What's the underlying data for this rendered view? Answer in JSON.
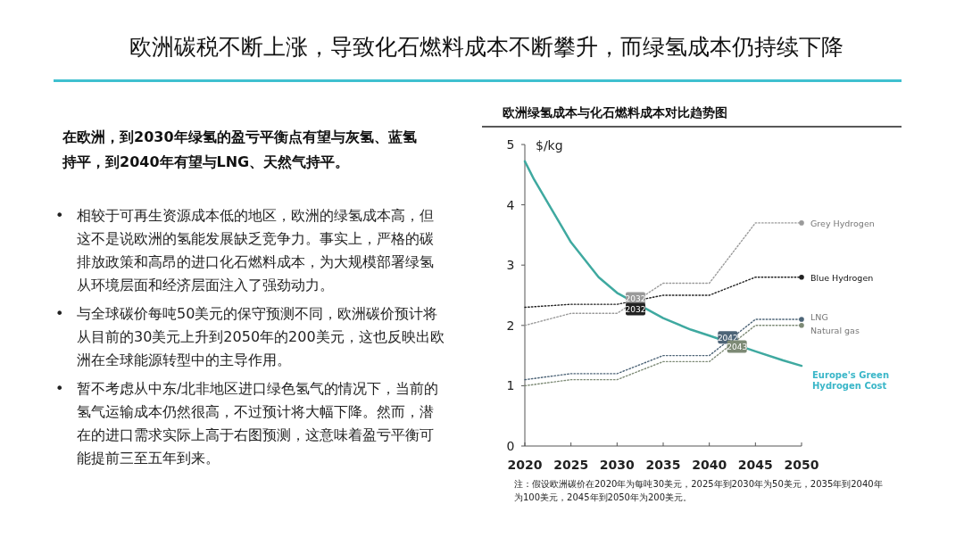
{
  "chart_data": {
    "type": "line",
    "title": "欧洲碳税不断上涨，导致化石燃料成本不断攀升，而绿氢成本仍持续下降",
    "subtitle": "欧洲绿氢成本与化石燃料成本对比趋势图",
    "ylabel": "$/kg",
    "xlim": [
      2020,
      2050
    ],
    "xticks": [
      2020,
      2025,
      2030,
      2035,
      2040,
      2045,
      2050
    ],
    "ylim": [
      0,
      5
    ],
    "yticks": [
      0,
      1,
      2,
      3,
      4,
      5
    ],
    "grid": false,
    "series": [
      {
        "name": "Grey Hydrogen",
        "color": "#9a9a9a",
        "line_style": "dotted",
        "x": [
          2020,
          2025,
          2030,
          2035,
          2040,
          2045,
          2050
        ],
        "values": [
          2.0,
          2.2,
          2.2,
          2.7,
          2.7,
          3.7,
          3.7
        ]
      },
      {
        "name": "Blue Hydrogen",
        "color": "#222222",
        "line_style": "dotted",
        "x": [
          2020,
          2025,
          2030,
          2035,
          2040,
          2045,
          2050
        ],
        "values": [
          2.3,
          2.35,
          2.35,
          2.5,
          2.5,
          2.8,
          2.8
        ]
      },
      {
        "name": "LNG",
        "color": "#4d6477",
        "line_style": "dotted",
        "x": [
          2020,
          2025,
          2030,
          2035,
          2040,
          2045,
          2050
        ],
        "values": [
          1.1,
          1.2,
          1.2,
          1.5,
          1.5,
          2.1,
          2.1
        ]
      },
      {
        "name": "Natural gas",
        "color": "#7d8a75",
        "line_style": "dotted",
        "x": [
          2020,
          2025,
          2030,
          2035,
          2040,
          2045,
          2050
        ],
        "values": [
          1.0,
          1.1,
          1.1,
          1.4,
          1.4,
          2.0,
          2.0
        ]
      },
      {
        "name": "Europe's Green Hydrogen Cost",
        "color": "#3fa9a0",
        "line_style": "solid",
        "x": [
          2020,
          2021,
          2023,
          2025,
          2028,
          2030,
          2035,
          2038,
          2040,
          2045,
          2048,
          2050
        ],
        "values": [
          4.72,
          4.42,
          3.9,
          3.38,
          2.8,
          2.54,
          2.12,
          1.93,
          1.83,
          1.57,
          1.42,
          1.33
        ]
      }
    ],
    "annotations": [
      "在欧洲，到2030年绿氢的盈亏平衡点有望与灰氢、蓝氢持平，到2040年有望与LNG、天然气持平。",
      "• 相较于可再生资源成本低的地区，欧洲的绿氢成本高，但这不是说欧洲的氢能发展缺乏竞争力。事实上，严格的碳排放政策和高昂的进口化石燃料成本，为大规模部署绿氢从环境层面和经济层面注入了强劲动力。",
      "• 与全球碳价每吨50美元的保守预测不同，欧洲碳价预计将从目前的30美元上升到2050年的200美元，这也反映出欧洲在全球能源转型中的主导作用。",
      "• 暂不考虑从中东/北非地区进口绿色氢气的情况下，当前的氢气运输成本仍然很高，不过预计将大幅下降。然而，潜在的进口需求实际上高于右图预测，这意味着盈亏平衡可能提前三至五年到来。",
      "注：假设欧洲碳价在2020年为每吨30美元，2025年到2030年为50美元，2035年到2040年为100美元，2045年到2050年为200美元。",
      {
        "text": "2032",
        "x": 2032,
        "y": 2.45
      },
      {
        "text": "2032",
        "x": 2032,
        "y": 2.27
      },
      {
        "text": "2042",
        "x": 2042,
        "y": 1.8
      },
      {
        "text": "2043",
        "x": 2043,
        "y": 1.65
      }
    ]
  }
}
